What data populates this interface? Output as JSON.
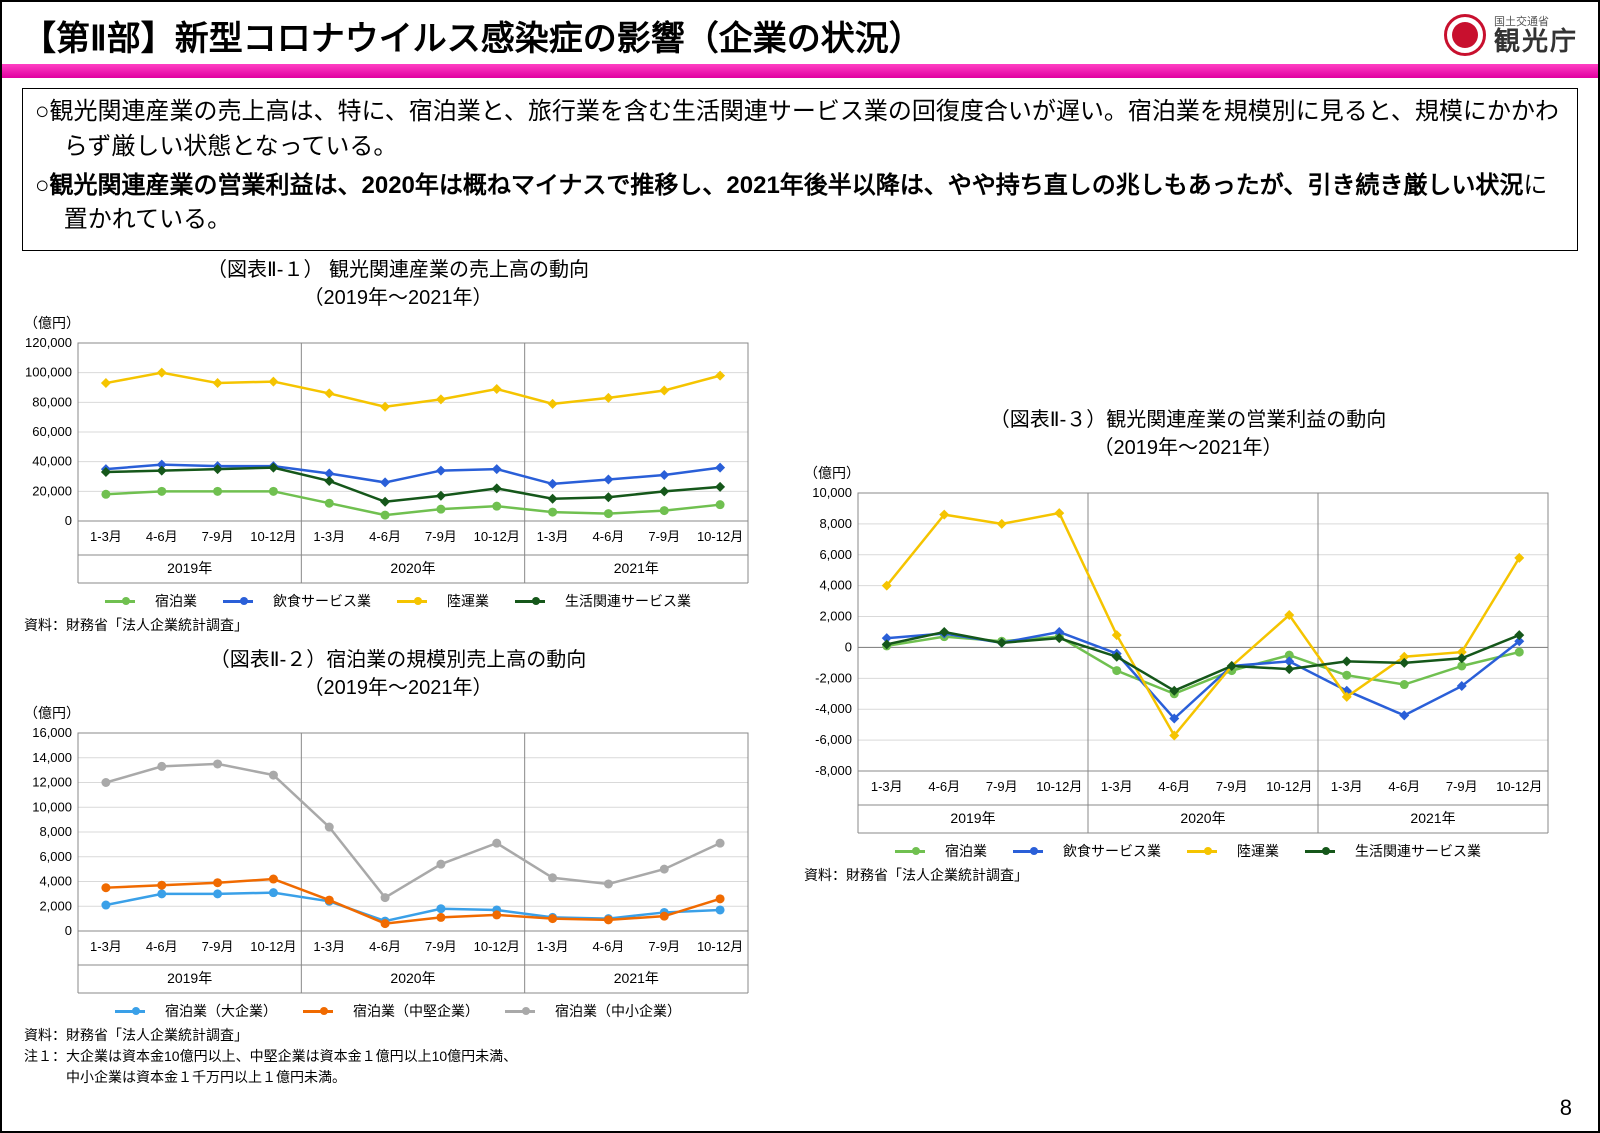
{
  "header": {
    "title": "【第Ⅱ部】新型コロナウイルス感染症の影響（企業の状況）",
    "logo_small": "国土交通省",
    "logo_big": "観光庁"
  },
  "summary": {
    "line1": "○観光関連産業の売上高は、特に、宿泊業と、旅行業を含む生活関連サービス業の回復度合いが遅い。宿泊業を規模別に見ると、規模にかかわらず厳しい状態となっている。",
    "line2a": "○観光関連産業の営業利益は、2020年は概ねマイナスで推移し、2021年後半以降は、やや持ち直しの兆しもあったが、引き続き厳しい状況",
    "line2b": "に置かれている。"
  },
  "common": {
    "x_labels": [
      "1-3月",
      "4-6月",
      "7-9月",
      "10-12月",
      "1-3月",
      "4-6月",
      "7-9月",
      "10-12月",
      "1-3月",
      "4-6月",
      "7-9月",
      "10-12月"
    ],
    "year_labels": [
      "2019年",
      "2020年",
      "2021年"
    ],
    "unit": "（億円）"
  },
  "chart1": {
    "title1": "（図表Ⅱ-１） 観光関連産業の売上高の動向",
    "title2": "（2019年～2021年）",
    "ymin": 0,
    "ymax": 120000,
    "ystep": 20000,
    "series": [
      {
        "name": "宿泊業",
        "color": "#70c050",
        "marker": "circle",
        "values": [
          18000,
          20000,
          20000,
          20000,
          12000,
          4000,
          8000,
          10000,
          6000,
          5000,
          7000,
          11000
        ]
      },
      {
        "name": "飲食サービス業",
        "color": "#2a5fd8",
        "marker": "diamond",
        "values": [
          35000,
          38000,
          37000,
          37000,
          32000,
          26000,
          34000,
          35000,
          25000,
          28000,
          31000,
          36000
        ]
      },
      {
        "name": "陸運業",
        "color": "#f5c400",
        "marker": "diamond",
        "values": [
          93000,
          100000,
          93000,
          94000,
          86000,
          77000,
          82000,
          89000,
          79000,
          83000,
          88000,
          98000
        ]
      },
      {
        "name": "生活関連サービス業",
        "color": "#15571a",
        "marker": "diamond",
        "values": [
          33000,
          34000,
          35000,
          36000,
          27000,
          13000,
          17000,
          22000,
          15000,
          16000,
          20000,
          23000
        ]
      }
    ],
    "source": "資料：財務省「法人企業統計調査」"
  },
  "chart2": {
    "title1": "（図表Ⅱ-２）宿泊業の規模別売上高の動向",
    "title2": "（2019年～2021年）",
    "ymin": 0,
    "ymax": 16000,
    "ystep": 2000,
    "series": [
      {
        "name": "宿泊業（大企業）",
        "color": "#3aa0e8",
        "marker": "circle",
        "values": [
          2100,
          3000,
          3000,
          3100,
          2400,
          800,
          1800,
          1700,
          1100,
          1000,
          1500,
          1700
        ]
      },
      {
        "name": "宿泊業（中堅企業）",
        "color": "#f06a00",
        "marker": "circle",
        "values": [
          3500,
          3700,
          3900,
          4200,
          2500,
          600,
          1100,
          1300,
          1000,
          900,
          1200,
          2600
        ]
      },
      {
        "name": "宿泊業（中小企業）",
        "color": "#a9a9a9",
        "marker": "circle",
        "values": [
          12000,
          13300,
          13500,
          12600,
          8400,
          2700,
          5400,
          7100,
          4300,
          3800,
          5000,
          7100
        ]
      }
    ],
    "source": "資料：財務省「法人企業統計調査」",
    "note1": "注１：大企業は資本金10億円以上、中堅企業は資本金１億円以上10億円未満、",
    "note2": "　　　中小企業は資本金１千万円以上１億円未満。"
  },
  "chart3": {
    "title1": "（図表Ⅱ-３）観光関連産業の営業利益の動向",
    "title2": "（2019年～2021年）",
    "ymin": -8000,
    "ymax": 10000,
    "ystep": 2000,
    "series": [
      {
        "name": "宿泊業",
        "color": "#70c050",
        "marker": "circle",
        "values": [
          100,
          700,
          400,
          700,
          -1500,
          -3000,
          -1500,
          -500,
          -1800,
          -2400,
          -1200,
          -300
        ]
      },
      {
        "name": "飲食サービス業",
        "color": "#2a5fd8",
        "marker": "diamond",
        "values": [
          600,
          900,
          300,
          1000,
          -400,
          -4600,
          -1200,
          -900,
          -2800,
          -4400,
          -2500,
          400
        ]
      },
      {
        "name": "陸運業",
        "color": "#f5c400",
        "marker": "diamond",
        "values": [
          4000,
          8600,
          8000,
          8700,
          800,
          -5700,
          -1200,
          2100,
          -3200,
          -600,
          -300,
          5800
        ]
      },
      {
        "name": "生活関連サービス業",
        "color": "#15571a",
        "marker": "diamond",
        "values": [
          200,
          1000,
          300,
          600,
          -600,
          -2800,
          -1200,
          -1400,
          -900,
          -1000,
          -700,
          800
        ]
      }
    ],
    "source": "資料：財務省「法人企業統計調査」"
  },
  "page_number": "8",
  "colors": {
    "grid": "#d9d9d9",
    "axis": "#888888"
  }
}
